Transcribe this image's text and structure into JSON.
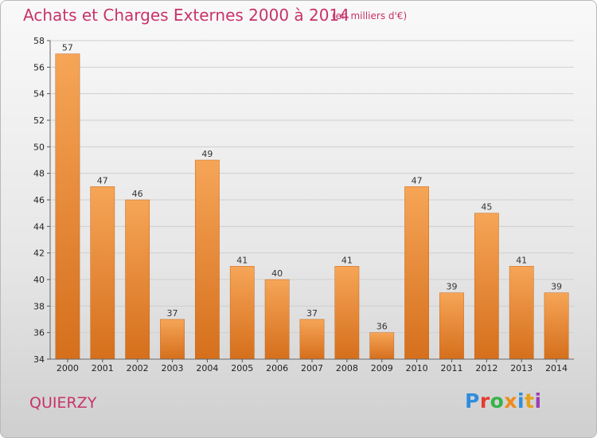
{
  "chart_data": {
    "type": "bar",
    "title": "Achats et Charges Externes 2000 à 2014",
    "subtitle": "(en milliers d'€)",
    "categories": [
      "2000",
      "2001",
      "2002",
      "2003",
      "2004",
      "2005",
      "2006",
      "2007",
      "2008",
      "2009",
      "2010",
      "2011",
      "2012",
      "2013",
      "2014"
    ],
    "values": [
      57,
      47,
      46,
      37,
      49,
      41,
      40,
      37,
      41,
      36,
      47,
      39,
      45,
      41,
      39
    ],
    "ylim": [
      34,
      58
    ],
    "yticks": [
      34,
      36,
      38,
      40,
      42,
      44,
      46,
      48,
      50,
      52,
      54,
      56,
      58
    ],
    "grid": true,
    "bar_color": "#f0923e"
  },
  "commune": "QUIERZY",
  "brand": {
    "letters": [
      "P",
      "r",
      "o",
      "x",
      "i",
      "t",
      "i"
    ]
  }
}
